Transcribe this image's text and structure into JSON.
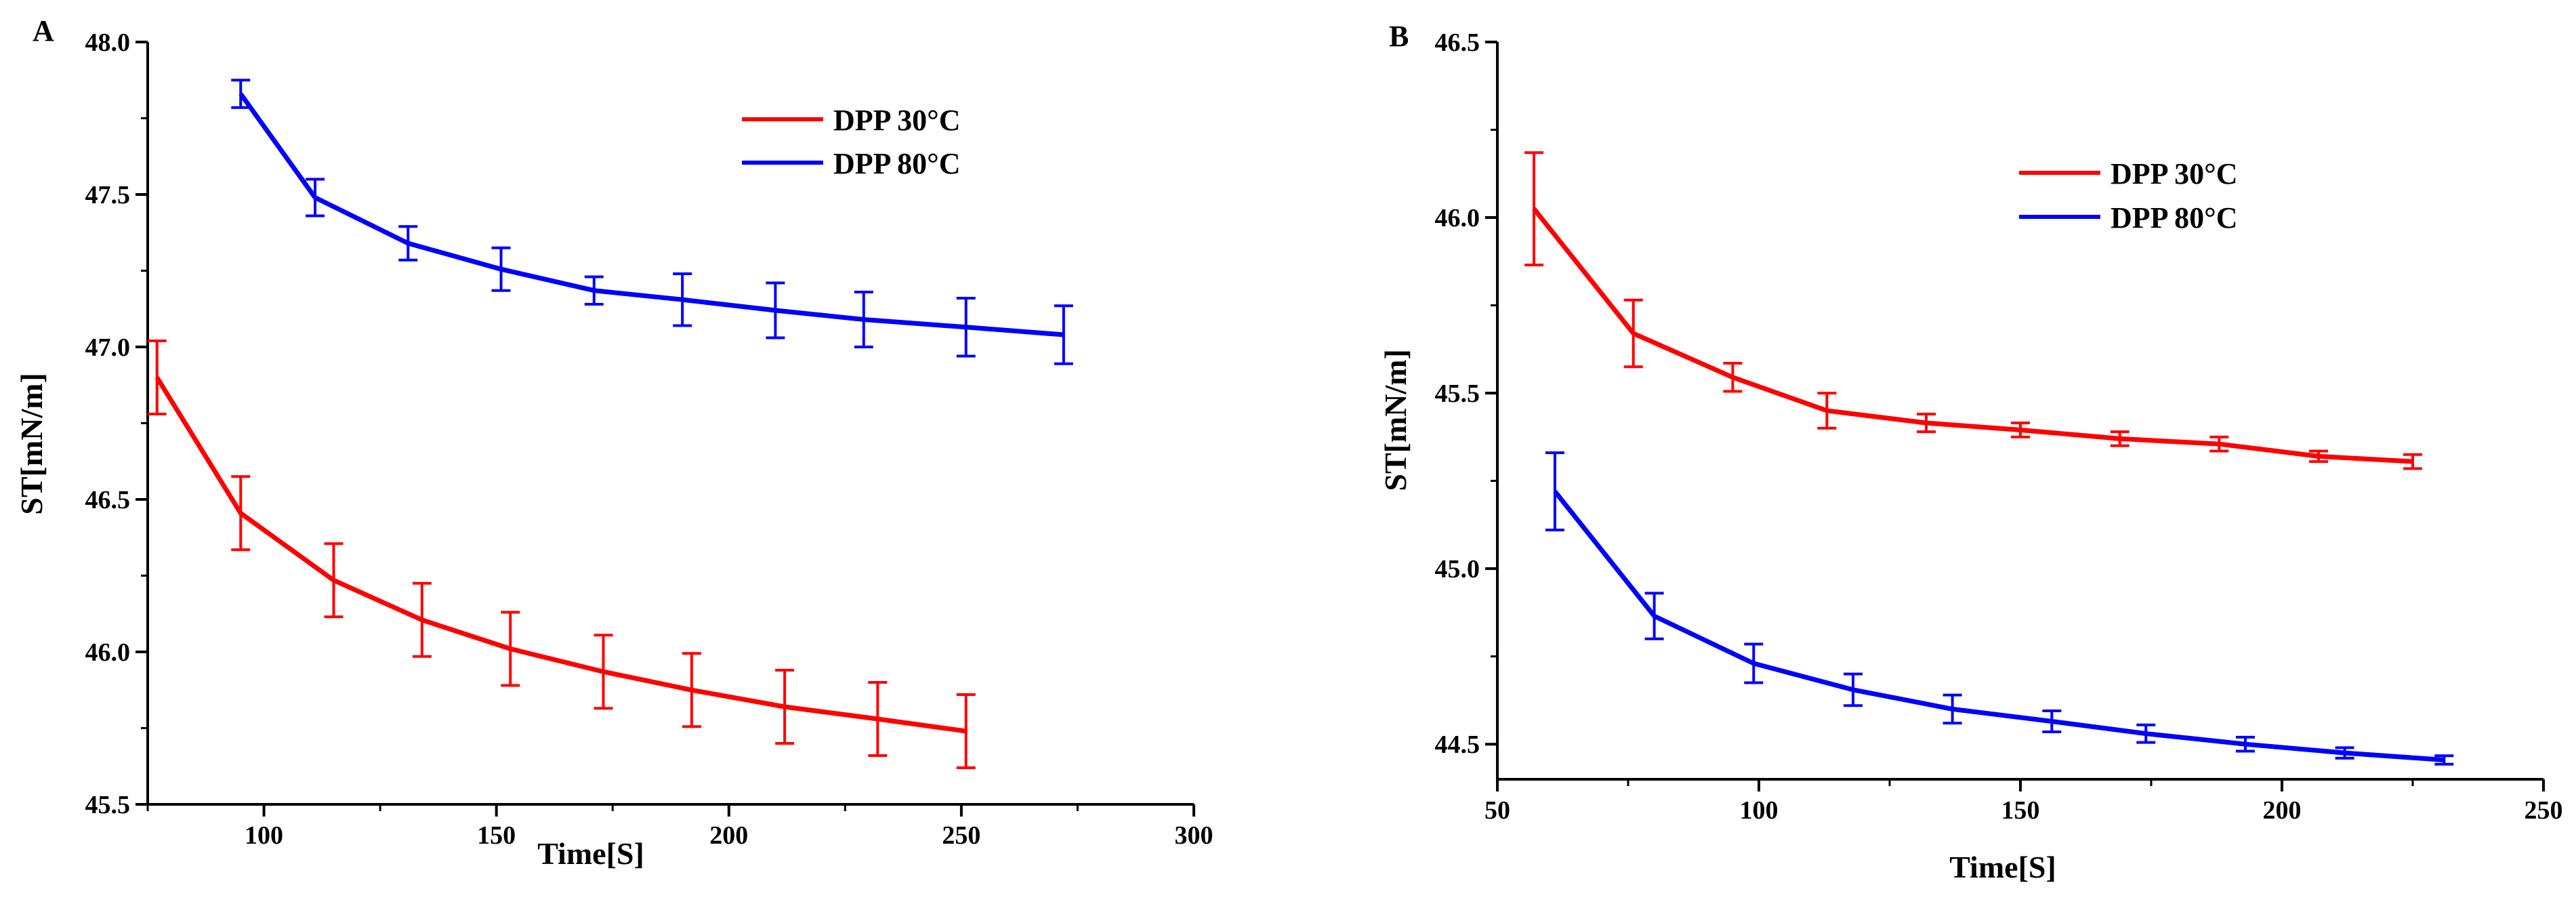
{
  "chart_data": [
    {
      "panel_label": "A",
      "type": "line",
      "xlabel": "Time[S]",
      "ylabel": "ST[mN/m]",
      "xlim": [
        75,
        300
      ],
      "ylim": [
        45.5,
        48.0
      ],
      "x_ticks": [
        100,
        150,
        200,
        250,
        300
      ],
      "y_ticks": [
        45.5,
        46.0,
        46.5,
        47.0,
        47.5,
        48.0
      ],
      "x_tick_labels": [
        "100",
        "150",
        "200",
        "250",
        "300"
      ],
      "y_tick_labels": [
        "45.5",
        "46.0",
        "46.5",
        "47.0",
        "47.5",
        "48.0"
      ],
      "legend": {
        "position": "top-right"
      },
      "series": [
        {
          "name": "DPP 30°C",
          "color": "#ff0000",
          "x": [
            77,
            95,
            115,
            134,
            153,
            173,
            192,
            212,
            232,
            251
          ],
          "y": [
            46.9,
            46.455,
            46.235,
            46.105,
            46.01,
            45.935,
            45.875,
            45.82,
            45.78,
            45.74
          ],
          "err": [
            0.12,
            0.12,
            0.12,
            0.12,
            0.12,
            0.12,
            0.12,
            0.12,
            0.12,
            0.12
          ]
        },
        {
          "name": "DPP 80°C",
          "color": "#0000ff",
          "x": [
            95,
            111,
            131,
            151,
            171,
            190,
            210,
            229,
            251,
            272
          ],
          "y": [
            47.83,
            47.49,
            47.34,
            47.255,
            47.185,
            47.155,
            47.12,
            47.09,
            47.065,
            47.04
          ],
          "err": [
            0.045,
            0.06,
            0.055,
            0.07,
            0.045,
            0.085,
            0.09,
            0.09,
            0.095,
            0.095
          ]
        }
      ]
    },
    {
      "panel_label": "B",
      "type": "line",
      "xlabel": "Time[S]",
      "ylabel": "ST[mN/m]",
      "xlim": [
        50,
        250
      ],
      "ylim": [
        44.4,
        46.5
      ],
      "x_ticks": [
        50,
        100,
        150,
        200,
        250
      ],
      "y_ticks": [
        44.5,
        45.0,
        45.5,
        46.0,
        46.5
      ],
      "x_tick_labels": [
        "50",
        "100",
        "150",
        "200",
        "250"
      ],
      "y_tick_labels": [
        "44.5",
        "45.0",
        "45.5",
        "46.0",
        "46.5"
      ],
      "legend": {
        "position": "top-right"
      },
      "series": [
        {
          "name": "DPP 30°C",
          "color": "#ff0000",
          "x": [
            57,
            76,
            95,
            113,
            132,
            150,
            169,
            188,
            207,
            225
          ],
          "y": [
            46.025,
            45.67,
            45.545,
            45.45,
            45.415,
            45.395,
            45.37,
            45.355,
            45.32,
            45.305
          ],
          "err": [
            0.16,
            0.095,
            0.04,
            0.05,
            0.025,
            0.02,
            0.02,
            0.02,
            0.015,
            0.02
          ]
        },
        {
          "name": "DPP 80°C",
          "color": "#0000ff",
          "x": [
            61,
            80,
            99,
            118,
            137,
            156,
            174,
            193,
            212,
            231
          ],
          "y": [
            45.22,
            44.865,
            44.73,
            44.655,
            44.6,
            44.565,
            44.53,
            44.5,
            44.475,
            44.455
          ],
          "err": [
            0.11,
            0.065,
            0.055,
            0.045,
            0.04,
            0.03,
            0.025,
            0.02,
            0.015,
            0.012
          ]
        }
      ]
    }
  ]
}
